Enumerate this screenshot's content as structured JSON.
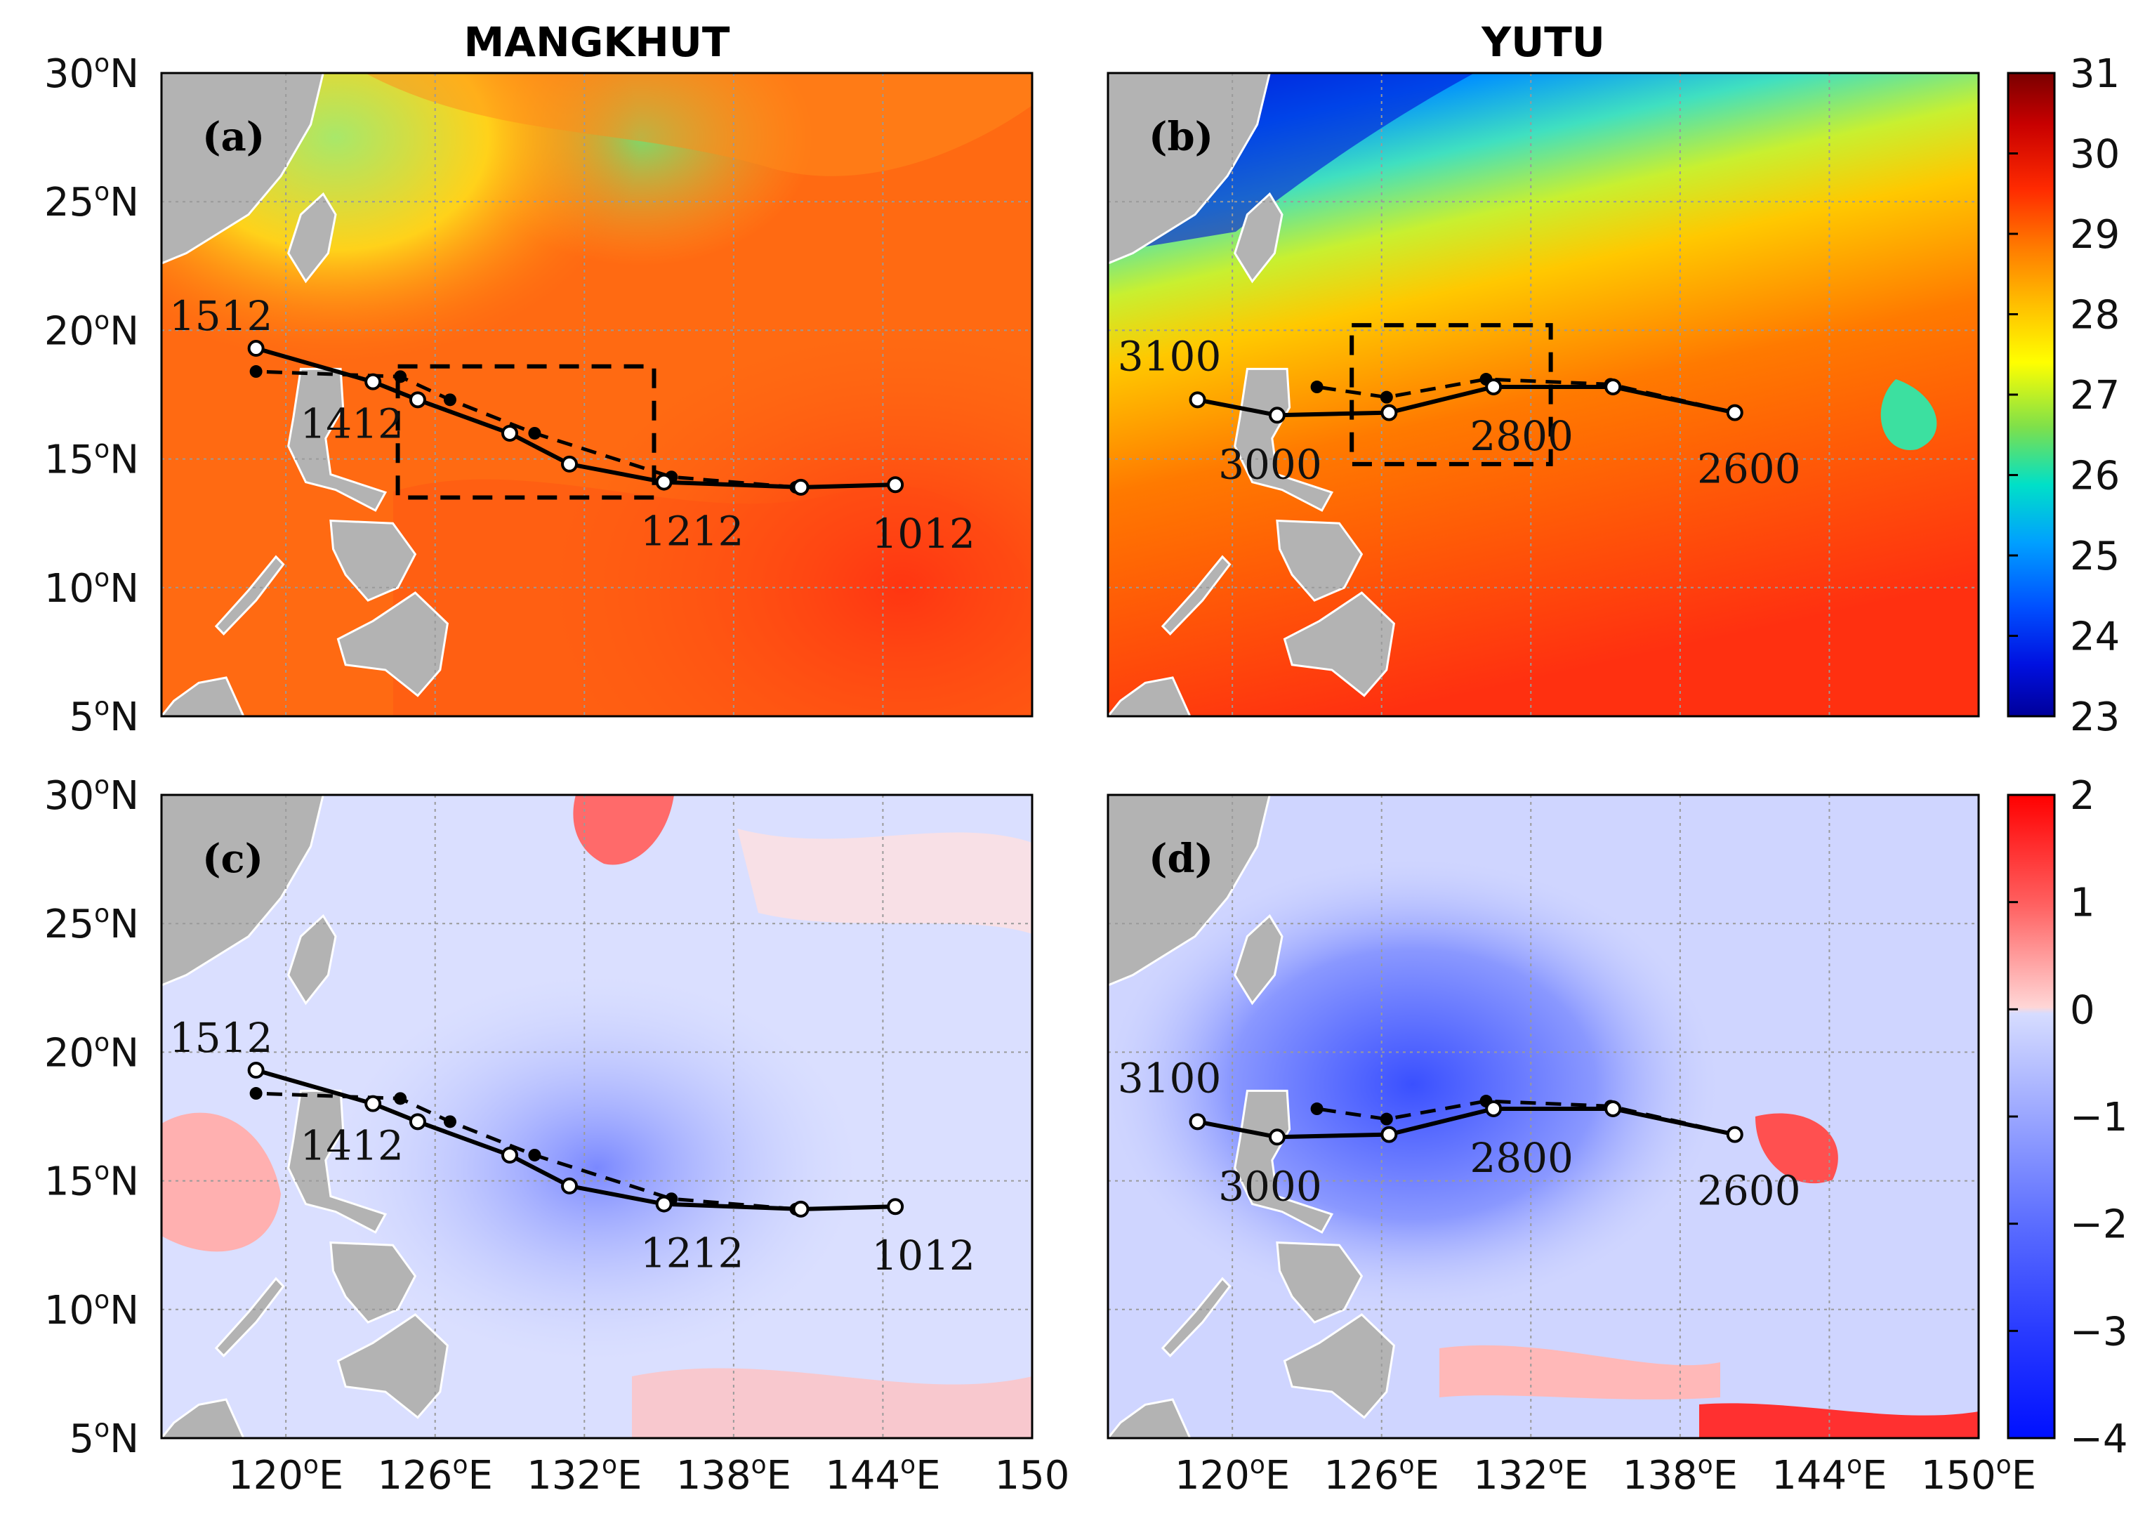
{
  "figure": {
    "column_titles": [
      "MANGKHUT",
      "YUTU"
    ],
    "panel_labels": [
      "(a)",
      "(b)",
      "(c)",
      "(d)"
    ]
  },
  "colors": {
    "land": "#b3b3b3",
    "track": "#000000",
    "box": "#000000",
    "grid": "#9a9a9a"
  },
  "chart_data": [
    {
      "type": "heatmap",
      "panel": "(a)",
      "title": "MANGKHUT",
      "field": "sea surface temperature",
      "xlim": [
        115,
        150
      ],
      "ylim": [
        5,
        30
      ],
      "xticks": [
        "120",
        "126",
        "132",
        "138",
        "144",
        "150"
      ],
      "yticks": [
        "5",
        "10",
        "15",
        "20",
        "25",
        "30"
      ],
      "colorbar": {
        "range": [
          23,
          31
        ],
        "ticks": [
          "23",
          "24",
          "25",
          "26",
          "27",
          "28",
          "29",
          "30",
          "31"
        ]
      },
      "background_sst": 29,
      "regions": [
        {
          "desc": "cooler coastal band",
          "lon": [
            117,
            122
          ],
          "lat": [
            21,
            30
          ],
          "value": 27
        },
        {
          "desc": "cool patch",
          "lon": [
            131,
            139
          ],
          "lat": [
            26,
            30
          ],
          "value": 27.5
        },
        {
          "desc": "warm core",
          "lon": [
            136,
            148
          ],
          "lat": [
            6,
            12
          ],
          "value": 29.8
        }
      ],
      "track_best": {
        "lon": [
          144.5,
          140.7,
          135.2,
          131.4,
          129,
          125.3,
          123.5,
          118.8
        ],
        "lat": [
          14,
          13.9,
          14.1,
          14.8,
          16,
          17.3,
          18,
          19.3
        ]
      },
      "track_model": {
        "lon": [
          144.5,
          140.5,
          135.5,
          130,
          126.6,
          124.6,
          118.8
        ],
        "lat": [
          14,
          13.9,
          14.3,
          16,
          17.3,
          18.2,
          18.4
        ]
      },
      "track_labels": [
        {
          "text": "1512",
          "lon": 118.8,
          "lat": 19.3
        },
        {
          "text": "1412",
          "lon": 123.5,
          "lat": 18
        },
        {
          "text": "1212",
          "lon": 135.2,
          "lat": 14.1
        },
        {
          "text": "1012",
          "lon": 144.5,
          "lat": 14
        }
      ],
      "box": {
        "lon": [
          124.5,
          134.8
        ],
        "lat": [
          13.5,
          18.6
        ]
      }
    },
    {
      "type": "heatmap",
      "panel": "(b)",
      "title": "YUTU",
      "field": "sea surface temperature",
      "xlim": [
        115,
        150
      ],
      "ylim": [
        5,
        30
      ],
      "xticks": [
        "120",
        "126",
        "132",
        "138",
        "144",
        "150"
      ],
      "yticks": [
        "5",
        "10",
        "15",
        "20",
        "25",
        "30"
      ],
      "colorbar": {
        "range": [
          23,
          31
        ],
        "ticks": [
          "23",
          "24",
          "25",
          "26",
          "27",
          "28",
          "29",
          "30",
          "31"
        ]
      },
      "background_sst": 28.7,
      "regions": [
        {
          "desc": "cold northern water",
          "lon": [
            117,
            128
          ],
          "lat": [
            24,
            30
          ],
          "value": 24
        },
        {
          "desc": "cool band",
          "lon": [
            115,
            150
          ],
          "lat": [
            20,
            26
          ],
          "value": 27
        },
        {
          "desc": "warm south",
          "lon": [
            115,
            150
          ],
          "lat": [
            5,
            12
          ],
          "value": 29.6
        }
      ],
      "track_best": {
        "lon": [
          140.2,
          135.3,
          130.5,
          126.3,
          121.8,
          118.6
        ],
        "lat": [
          16.8,
          17.8,
          17.8,
          16.8,
          16.7,
          17.3
        ]
      },
      "track_model": {
        "lon": [
          140.2,
          135.2,
          130.2,
          126.2,
          123.4
        ],
        "lat": [
          16.8,
          17.9,
          18.1,
          17.4,
          17.8
        ]
      },
      "track_labels": [
        {
          "text": "3100",
          "lon": 118.6,
          "lat": 17.3
        },
        {
          "text": "3000",
          "lon": 121.8,
          "lat": 16.7
        },
        {
          "text": "2800",
          "lon": 130.5,
          "lat": 17.8
        },
        {
          "text": "2600",
          "lon": 140.2,
          "lat": 16.8
        }
      ],
      "box": {
        "lon": [
          124.8,
          132.8
        ],
        "lat": [
          14.8,
          20.2
        ]
      }
    },
    {
      "type": "heatmap",
      "panel": "(c)",
      "title": "",
      "field": "sea surface temperature anomaly",
      "xlim": [
        115,
        150
      ],
      "ylim": [
        5,
        30
      ],
      "xticks": [
        "120",
        "126",
        "132",
        "138",
        "144",
        "150"
      ],
      "yticks": [
        "5",
        "10",
        "15",
        "20",
        "25",
        "30"
      ],
      "colorbar": {
        "range": [
          -4,
          2
        ],
        "ticks": [
          "2",
          "1",
          "0",
          "−1",
          "−2",
          "−3",
          "−4"
        ]
      },
      "background_anomaly": -0.3,
      "regions": [
        {
          "desc": "warm anomaly",
          "lon": [
            131,
            135
          ],
          "lat": [
            27,
            30
          ],
          "value": 1.5
        },
        {
          "desc": "cooling along track",
          "lon": [
            127,
            140
          ],
          "lat": [
            13.5,
            18.5
          ],
          "value": -1.2
        },
        {
          "desc": "warm western margin",
          "lon": [
            115,
            119
          ],
          "lat": [
            12,
            19
          ],
          "value": 0.8
        }
      ],
      "track_best": {
        "lon": [
          144.5,
          140.7,
          135.2,
          131.4,
          129,
          125.3,
          123.5,
          118.8
        ],
        "lat": [
          14,
          13.9,
          14.1,
          14.8,
          16,
          17.3,
          18,
          19.3
        ]
      },
      "track_model": {
        "lon": [
          144.5,
          140.5,
          135.5,
          130,
          126.6,
          124.6,
          118.8
        ],
        "lat": [
          14,
          13.9,
          14.3,
          16,
          17.3,
          18.2,
          18.4
        ]
      },
      "track_labels": [
        {
          "text": "1512",
          "lon": 118.8,
          "lat": 19.3
        },
        {
          "text": "1412",
          "lon": 123.5,
          "lat": 18
        },
        {
          "text": "1212",
          "lon": 135.2,
          "lat": 14.1
        },
        {
          "text": "1012",
          "lon": 144.5,
          "lat": 14
        }
      ]
    },
    {
      "type": "heatmap",
      "panel": "(d)",
      "title": "",
      "field": "sea surface temperature anomaly",
      "xlim": [
        115,
        150
      ],
      "ylim": [
        5,
        30
      ],
      "xticks": [
        "120",
        "126",
        "132",
        "138",
        "144",
        "150"
      ],
      "yticks": [
        "5",
        "10",
        "15",
        "20",
        "25",
        "30"
      ],
      "colorbar": {
        "range": [
          -4,
          2
        ],
        "ticks": [
          "2",
          "1",
          "0",
          "−1",
          "−2",
          "−3",
          "−4"
        ]
      },
      "background_anomaly": -0.5,
      "regions": [
        {
          "desc": "strong cooling north of track",
          "lon": [
            124,
            136
          ],
          "lat": [
            16,
            22
          ],
          "value": -2
        },
        {
          "desc": "warm anomaly east",
          "lon": [
            141,
            146
          ],
          "lat": [
            14,
            17
          ],
          "value": 1.5
        },
        {
          "desc": "warm streak south",
          "lon": [
            139,
            149
          ],
          "lat": [
            5,
            7
          ],
          "value": 1.8
        }
      ],
      "track_best": {
        "lon": [
          140.2,
          135.3,
          130.5,
          126.3,
          121.8,
          118.6
        ],
        "lat": [
          16.8,
          17.8,
          17.8,
          16.8,
          16.7,
          17.3
        ]
      },
      "track_model": {
        "lon": [
          140.2,
          135.2,
          130.2,
          126.2,
          123.4
        ],
        "lat": [
          16.8,
          17.9,
          18.1,
          17.4,
          17.8
        ]
      },
      "track_labels": [
        {
          "text": "3100",
          "lon": 118.6,
          "lat": 17.3
        },
        {
          "text": "3000",
          "lon": 121.8,
          "lat": 16.7
        },
        {
          "text": "2800",
          "lon": 130.5,
          "lat": 17.8
        },
        {
          "text": "2600",
          "lon": 140.2,
          "lat": 16.8
        }
      ]
    }
  ]
}
